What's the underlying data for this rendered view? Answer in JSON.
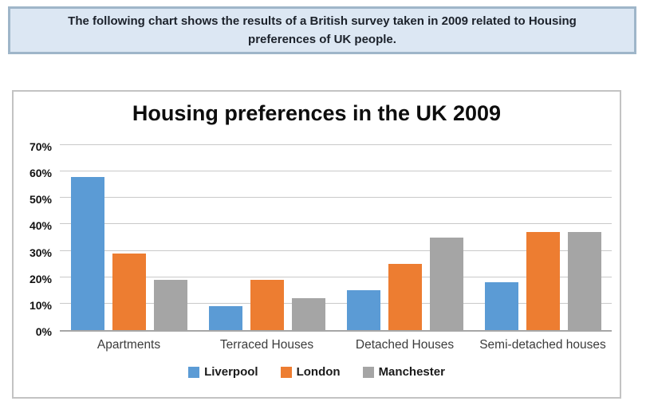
{
  "instruction": {
    "text": "The following chart shows the results of a British survey taken in 2009 related to Housing preferences of UK people."
  },
  "chart_data": {
    "type": "bar",
    "title": "Housing preferences in the UK 2009",
    "categories": [
      "Apartments",
      "Terraced Houses",
      "Detached Houses",
      "Semi-detached houses"
    ],
    "series": [
      {
        "name": "Liverpool",
        "color": "#5B9BD5",
        "values": [
          58,
          9,
          15,
          18
        ]
      },
      {
        "name": "London",
        "color": "#ED7D31",
        "values": [
          29,
          19,
          25,
          37
        ]
      },
      {
        "name": "Manchester",
        "color": "#A5A5A5",
        "values": [
          19,
          12,
          35,
          37
        ]
      }
    ],
    "xlabel": "",
    "ylabel": "",
    "ylim": [
      0,
      70
    ],
    "ytick_step": 10,
    "ytick_suffix": "%",
    "grid": true,
    "legend_position": "bottom"
  },
  "colors": {
    "header_bg": "#DCE7F3",
    "header_border": "#9FB6C9",
    "panel_border": "#C3C3C3",
    "gridline": "#C9C9C9",
    "axis_line": "#A6A6A6"
  }
}
